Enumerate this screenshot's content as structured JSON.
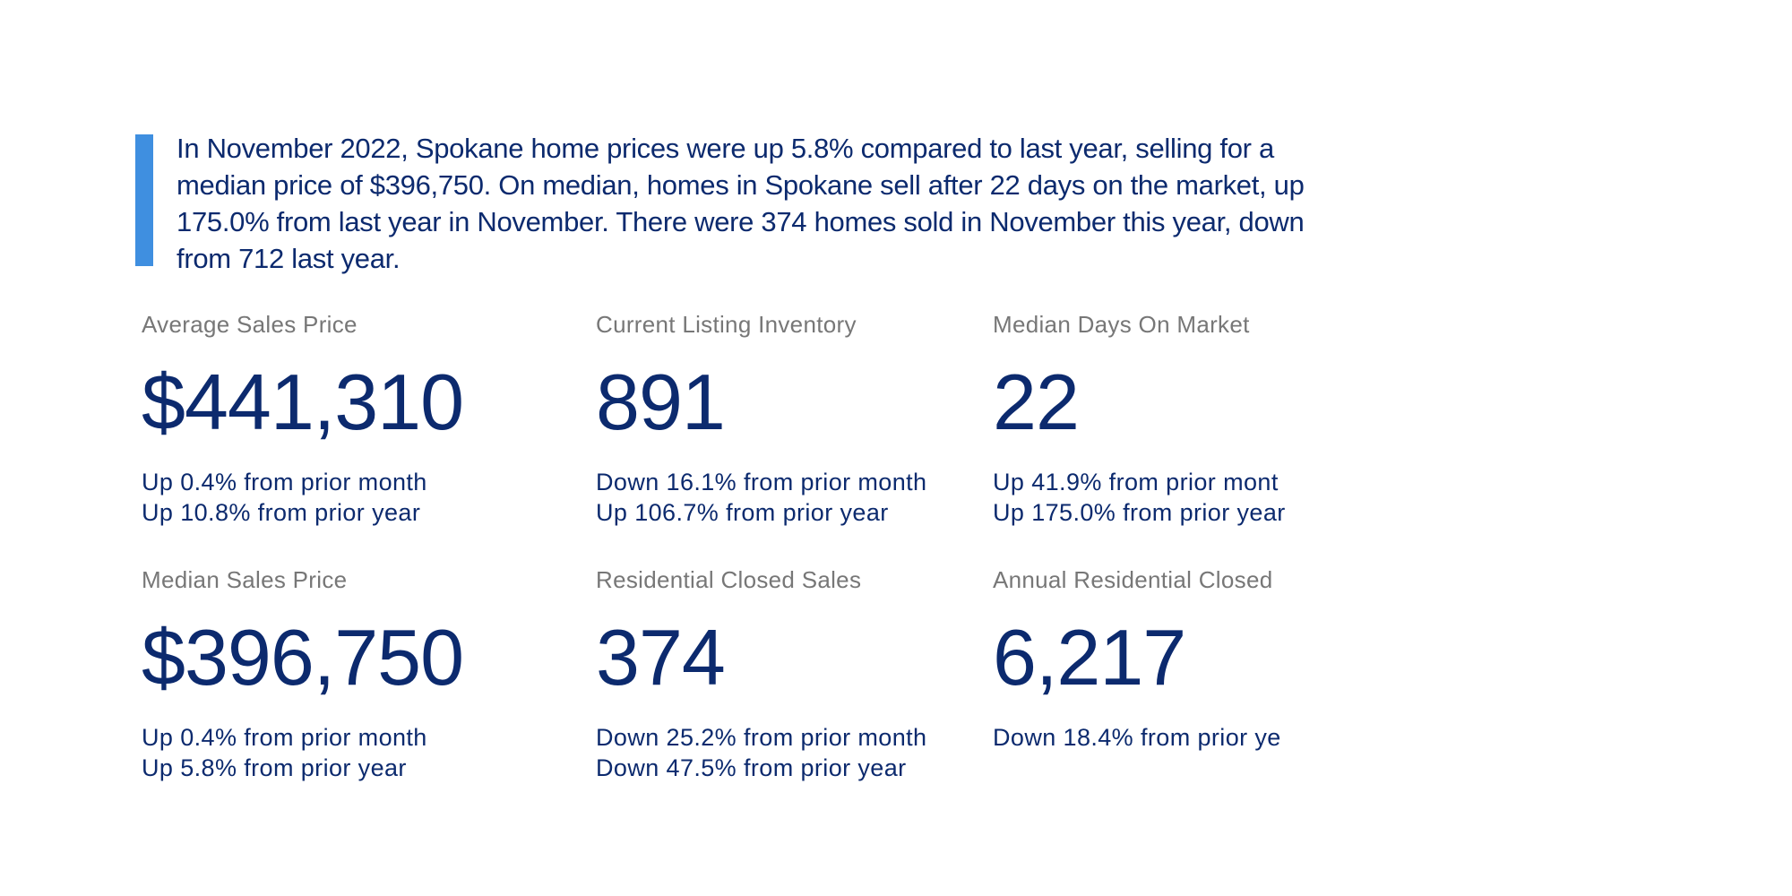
{
  "summary": "In November 2022, Spokane home prices were up 5.8% compared to last year, selling for a median price of $396,750. On median, homes in Spokane sell after 22 days on the market, up 175.0% from last year in November. There were 374 homes sold in November this year, down from 712 last year.",
  "colors": {
    "accent": "#3f8fe0",
    "value": "#0c2a6e",
    "label": "#777777"
  },
  "stats": [
    {
      "label": "Average Sales Price",
      "value": "$441,310",
      "changes": [
        "Up 0.4% from prior month",
        "Up 10.8% from prior year"
      ]
    },
    {
      "label": "Current Listing Inventory",
      "value": "891",
      "changes": [
        "Down 16.1% from prior month",
        "Up 106.7% from prior year"
      ]
    },
    {
      "label": "Median Days On Market",
      "value": "22",
      "changes": [
        "Up 41.9% from prior mont",
        "Up 175.0% from prior year"
      ]
    },
    {
      "label": "Median Sales Price",
      "value": "$396,750",
      "changes": [
        "Up 0.4% from prior month",
        "Up 5.8% from prior year"
      ]
    },
    {
      "label": "Residential Closed Sales",
      "value": "374",
      "changes": [
        "Down 25.2% from prior month",
        "Down 47.5% from prior year"
      ]
    },
    {
      "label": "Annual Residential Closed",
      "value": "6,217",
      "changes": [
        "Down 18.4% from prior ye"
      ]
    }
  ]
}
